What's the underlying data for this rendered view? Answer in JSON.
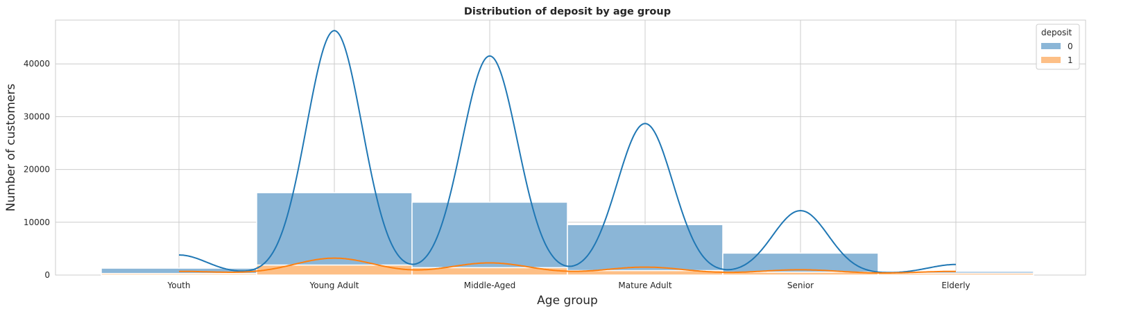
{
  "chart_data": {
    "type": "bar",
    "subtype": "stacked histogram with KDE",
    "title": "Distribution of deposit by age group",
    "xlabel": "Age group",
    "ylabel": "Number of customers",
    "categories": [
      "Youth",
      "Young Adult",
      "Middle-Aged",
      "Mature Adult",
      "Senior",
      "Elderly"
    ],
    "ylim": [
      0,
      48300
    ],
    "yticks": [
      0,
      10000,
      20000,
      30000,
      40000
    ],
    "grid": true,
    "legend": {
      "title": "deposit",
      "placement": "top-right"
    },
    "series": [
      {
        "name": "0",
        "color": "#1f77b4",
        "fill": "#8bb6d7",
        "values": [
          1000,
          13700,
          12400,
          8700,
          3600,
          350
        ]
      },
      {
        "name": "1",
        "color": "#ff7f0e",
        "fill": "#fdbf86",
        "values": [
          300,
          1900,
          1400,
          850,
          550,
          350
        ]
      }
    ],
    "kde": [
      {
        "series": "0",
        "peaks": [
          3800,
          46300,
          41500,
          28700,
          12200,
          2000
        ]
      },
      {
        "series": "1",
        "peaks": [
          700,
          3200,
          2300,
          1500,
          1000,
          700
        ]
      }
    ]
  }
}
